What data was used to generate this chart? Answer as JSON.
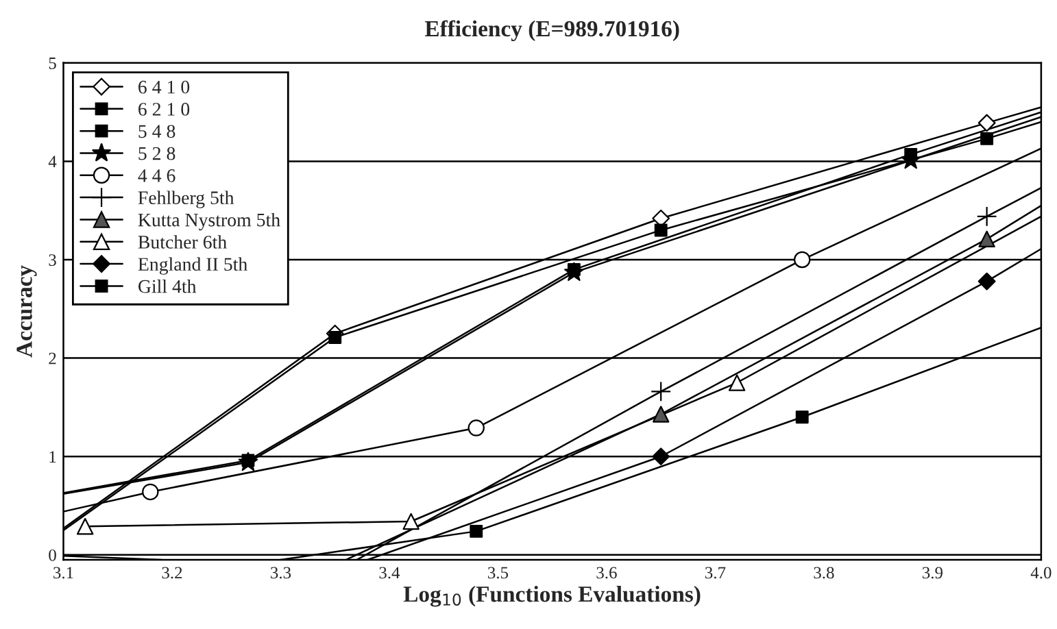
{
  "chart_data": {
    "type": "line",
    "title": "Efficiency (E=989.701916)",
    "xlabel": "Log$_{10}$ (Functions Evaluations)",
    "ylabel": "Accuracy",
    "xlim": [
      3.1,
      4.0
    ],
    "ylim": [
      -0.05,
      5
    ],
    "xticks": [
      3.1,
      3.2,
      3.3,
      3.4,
      3.5,
      3.6,
      3.7,
      3.8,
      3.9,
      {
        "value": 4,
        "label": "4.0"
      }
    ],
    "yticks": [
      0,
      1,
      2,
      3,
      4,
      5
    ],
    "grid": "y",
    "legend": "top left",
    "line_style": "solid",
    "series": [
      {
        "name": "6 4 1 0",
        "color": "#000000",
        "marker": "diamond",
        "colors": [
          "#ffffff",
          "#ffffff",
          "#ffffff"
        ],
        "x": [
          3.35,
          3.65,
          3.95
        ],
        "values": [
          2.25,
          3.42,
          4.39
        ]
      },
      {
        "name": "6 2 1 0",
        "color": "#000000",
        "marker": "square",
        "colors": [
          "#000000",
          "#000000",
          "#000000"
        ],
        "x": [
          3.35,
          3.65,
          3.95
        ],
        "values": [
          2.21,
          3.3,
          4.23
        ]
      },
      {
        "name": "5 4 8",
        "color": "#000000",
        "marker": "square",
        "colors": [
          "#000000",
          "#000000",
          "#000000"
        ],
        "x": [
          3.27,
          3.57,
          3.88
        ],
        "values": [
          0.96,
          2.9,
          4.07
        ]
      },
      {
        "name": "5 2 8",
        "color": "#000000",
        "marker": "star",
        "colors": [
          "#000000",
          "#000000",
          "#000000"
        ],
        "x": [
          3.27,
          3.57,
          3.88
        ],
        "values": [
          0.94,
          2.87,
          4.01
        ]
      },
      {
        "name": "4 4 6",
        "color": "#000000",
        "marker": "circle",
        "colors": [
          "#ffffff",
          "#ffffff",
          "#ffffff"
        ],
        "x": [
          3.18,
          3.48,
          3.78
        ],
        "values": [
          0.64,
          1.29,
          3.0
        ]
      },
      {
        "name": "Fehlberg 5th",
        "color": "#000000",
        "marker": "cross",
        "colors": [
          "#000000",
          "#000000"
        ],
        "x": [
          3.65,
          3.95
        ],
        "values": [
          1.66,
          3.44
        ]
      },
      {
        "name": "Kutta Nystrom 5th",
        "color": "#000000",
        "marker": "triangle",
        "colors": [
          "#555555",
          "#555555"
        ],
        "x": [
          3.65,
          3.95
        ],
        "values": [
          1.43,
          3.21
        ]
      },
      {
        "name": "Butcher 6th",
        "color": "#000000",
        "marker": "triangle",
        "colors": [
          "#ffffff",
          "#ffffff",
          "#ffffff"
        ],
        "x": [
          3.12,
          3.42,
          3.72
        ],
        "values": [
          0.29,
          0.34,
          1.75
        ]
      },
      {
        "name": "England II 5th",
        "color": "#000000",
        "marker": "diamond",
        "colors": [
          "#000000",
          "#000000"
        ],
        "x": [
          3.65,
          3.95
        ],
        "values": [
          1.0,
          2.78
        ]
      },
      {
        "name": "Gill 4th",
        "color": "#000000",
        "marker": "square",
        "colors": [
          "#000000",
          "#000000"
        ],
        "x": [
          3.48,
          3.78
        ],
        "values": [
          0.24,
          1.4
        ]
      },
      {
        "color": "#000000",
        "marker": "none",
        "x": [
          3.1,
          3.35
        ],
        "values": [
          0.27,
          2.25
        ]
      },
      {
        "color": "#000000",
        "marker": "none",
        "x": [
          3.95,
          4.0
        ],
        "values": [
          4.39,
          4.55
        ]
      },
      {
        "color": "#000000",
        "marker": "none",
        "x": [
          3.1,
          3.35
        ],
        "values": [
          0.25,
          2.21
        ]
      },
      {
        "color": "#000000",
        "marker": "none",
        "x": [
          3.95,
          4.0
        ],
        "values": [
          4.23,
          4.4
        ]
      },
      {
        "color": "#000000",
        "marker": "none",
        "x": [
          3.1,
          3.27
        ],
        "values": [
          0.63,
          0.96
        ]
      },
      {
        "color": "#000000",
        "marker": "none",
        "x": [
          3.88,
          4.0
        ],
        "values": [
          4.07,
          4.5
        ]
      },
      {
        "color": "#000000",
        "marker": "none",
        "x": [
          3.1,
          3.27
        ],
        "values": [
          0.62,
          0.94
        ]
      },
      {
        "color": "#000000",
        "marker": "none",
        "x": [
          3.88,
          4.0
        ],
        "values": [
          4.01,
          4.45
        ]
      },
      {
        "color": "#000000",
        "marker": "none",
        "x": [
          3.1,
          3.18
        ],
        "values": [
          0.44,
          0.64
        ]
      },
      {
        "color": "#000000",
        "marker": "none",
        "x": [
          3.78,
          4.0
        ],
        "values": [
          3.0,
          4.13
        ]
      },
      {
        "color": "#000000",
        "marker": "none",
        "x": [
          3.37,
          3.65
        ],
        "values": [
          -0.05,
          1.66
        ]
      },
      {
        "color": "#000000",
        "marker": "none",
        "x": [
          3.95,
          4.0
        ],
        "values": [
          3.44,
          3.73
        ]
      },
      {
        "color": "#000000",
        "marker": "none",
        "x": [
          3.36,
          3.65
        ],
        "values": [
          -0.05,
          1.43
        ]
      },
      {
        "color": "#000000",
        "marker": "none",
        "x": [
          3.95,
          4.0
        ],
        "values": [
          3.21,
          3.55
        ]
      },
      {
        "color": "#000000",
        "marker": "none",
        "x": [
          3.72,
          4.0
        ],
        "values": [
          1.75,
          3.44
        ]
      },
      {
        "color": "#000000",
        "marker": "none",
        "x": [
          3.38,
          3.65
        ],
        "values": [
          -0.05,
          1.0
        ]
      },
      {
        "color": "#000000",
        "marker": "none",
        "x": [
          3.95,
          4.0
        ],
        "values": [
          2.78,
          3.11
        ]
      },
      {
        "color": "#000000",
        "marker": "none",
        "x": [
          3.1,
          3.19
        ],
        "values": [
          -0.01,
          -0.05
        ]
      },
      {
        "color": "#000000",
        "marker": "none",
        "x": [
          3.3,
          3.48
        ],
        "values": [
          -0.05,
          0.24
        ]
      },
      {
        "color": "#000000",
        "marker": "none",
        "x": [
          3.78,
          4.0
        ],
        "values": [
          1.4,
          2.31
        ]
      }
    ]
  }
}
